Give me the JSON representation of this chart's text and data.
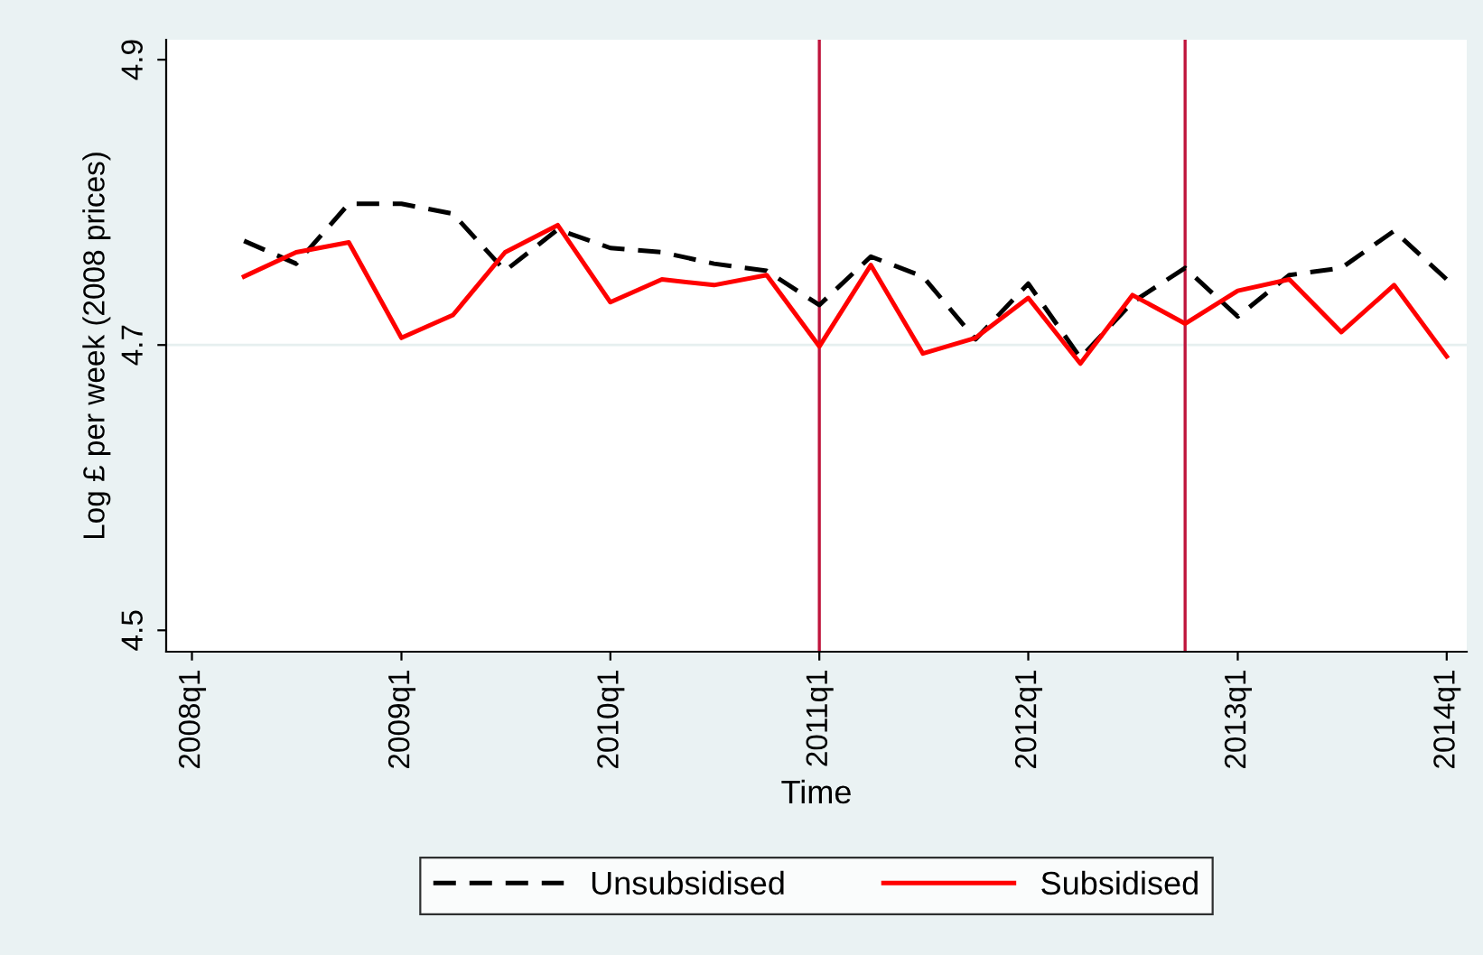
{
  "chart_data": {
    "type": "line",
    "xlabel": "Time",
    "ylabel": "Log £ per week (2008 prices)",
    "x": [
      "2008-04",
      "2008-07",
      "2008-10",
      "2009-01",
      "2009-04",
      "2009-07",
      "2009-10",
      "2010-01",
      "2010-04",
      "2010-07",
      "2010-10",
      "2011-01",
      "2011-04",
      "2011-07",
      "2011-10",
      "2012-01",
      "2012-04",
      "2012-07",
      "2012-10",
      "2013-01",
      "2013-04",
      "2013-07",
      "2013-10",
      "2014-01"
    ],
    "series": [
      {
        "name": "Unsubsidised",
        "color": "#000000",
        "line_style": "dashed",
        "values": [
          4.773,
          4.757,
          4.799,
          4.799,
          4.792,
          4.752,
          4.781,
          4.768,
          4.765,
          4.757,
          4.752,
          4.728,
          4.762,
          4.748,
          4.704,
          4.743,
          4.691,
          4.73,
          4.754,
          4.72,
          4.749,
          4.754,
          4.78,
          4.746
        ]
      },
      {
        "name": "Subsidised",
        "color": "#ff0000",
        "line_style": "solid",
        "values": [
          4.748,
          4.765,
          4.772,
          4.705,
          4.721,
          4.765,
          4.784,
          4.73,
          4.746,
          4.742,
          4.749,
          4.699,
          4.756,
          4.694,
          4.705,
          4.733,
          4.687,
          4.735,
          4.715,
          4.738,
          4.746,
          4.709,
          4.742,
          4.692
        ]
      }
    ],
    "xlim": [
      "2007-11-17",
      "2014-02-05"
    ],
    "ylim": [
      4.485,
      4.914
    ],
    "xticks": [
      {
        "value": "2008-01",
        "label": "2008q1"
      },
      {
        "value": "2009-01",
        "label": "2009q1"
      },
      {
        "value": "2010-01",
        "label": "2010q1"
      },
      {
        "value": "2011-01",
        "label": "2011q1"
      },
      {
        "value": "2012-01",
        "label": "2012q1"
      },
      {
        "value": "2013-01",
        "label": "2013q1"
      },
      {
        "value": "2014-01",
        "label": "2014q1"
      }
    ],
    "yticks": [
      {
        "value": 4.5,
        "label": "4.5"
      },
      {
        "value": 4.7,
        "label": "4.7"
      },
      {
        "value": 4.9,
        "label": "4.9"
      }
    ],
    "ref_lines": [
      {
        "axis": "y",
        "value": 4.7,
        "color": "#e6efef"
      },
      {
        "axis": "x",
        "value": "2011-01",
        "color": "#c0143c"
      },
      {
        "axis": "x",
        "value": "2012-10",
        "color": "#c0143c"
      }
    ],
    "grid": false,
    "legend": "bottom",
    "marker": "none"
  }
}
